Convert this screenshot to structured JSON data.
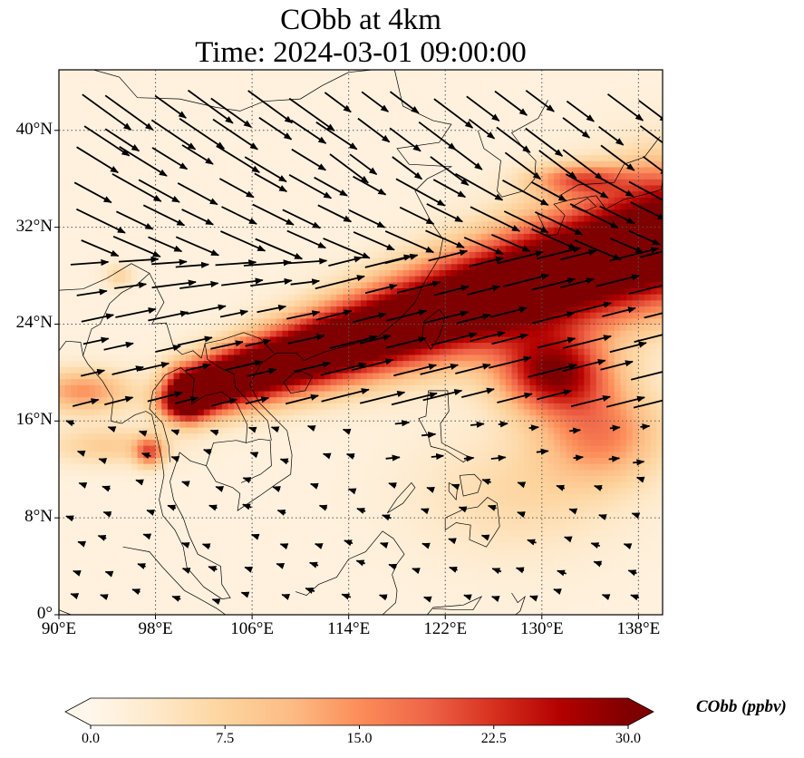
{
  "figure": {
    "title_line1": "CObb at 4km",
    "title_line2": "Time: 2024-03-01 09:00:00"
  },
  "chart_data": {
    "type": "heatmap",
    "title": "CObb at 4km",
    "subtitle": "Time: 2024-03-01 09:00:00",
    "variable": "CObb",
    "units": "ppbv",
    "level": "4km",
    "overlay": "wind vectors",
    "extent": {
      "lon": [
        90,
        140
      ],
      "lat": [
        0,
        45
      ]
    },
    "x_ticks": [
      {
        "value": 90,
        "label": "90°E"
      },
      {
        "value": 98,
        "label": "98°E"
      },
      {
        "value": 106,
        "label": "106°E"
      },
      {
        "value": 114,
        "label": "114°E"
      },
      {
        "value": 122,
        "label": "122°E"
      },
      {
        "value": 130,
        "label": "130°E"
      },
      {
        "value": 138,
        "label": "138°E"
      }
    ],
    "y_ticks": [
      {
        "value": 0,
        "label": "0°"
      },
      {
        "value": 8,
        "label": "8°N"
      },
      {
        "value": 16,
        "label": "16°N"
      },
      {
        "value": 24,
        "label": "24°N"
      },
      {
        "value": 32,
        "label": "32°N"
      },
      {
        "value": 40,
        "label": "40°N"
      }
    ],
    "grid": true,
    "colorbar": {
      "label": "CObb (ppbv)",
      "min": 0.0,
      "max": 30.0,
      "extend": "both",
      "colormap": "OrRd",
      "ticks": [
        {
          "value": 0.0,
          "label": "0.0"
        },
        {
          "value": 7.5,
          "label": "7.5"
        },
        {
          "value": 15.0,
          "label": "15.0"
        },
        {
          "value": 22.5,
          "label": "22.5"
        },
        {
          "value": 30.0,
          "label": "30.0"
        }
      ],
      "placement": "bottom"
    },
    "plume_features": [
      {
        "name": "main plume axis",
        "from": [
          101,
          18
        ],
        "to": [
          140,
          30
        ],
        "value": 30
      },
      {
        "name": "SE lobe",
        "center": [
          131,
          19
        ],
        "value": 22
      },
      {
        "name": "Bay of Bengal band",
        "center": [
          92,
          18
        ],
        "value": 14
      }
    ],
    "colors": [
      "#fff7ec",
      "#fee8c8",
      "#fdd49e",
      "#fdbb84",
      "#fc8d59",
      "#ef6548",
      "#d7301f",
      "#b30000",
      "#7f0000"
    ]
  }
}
